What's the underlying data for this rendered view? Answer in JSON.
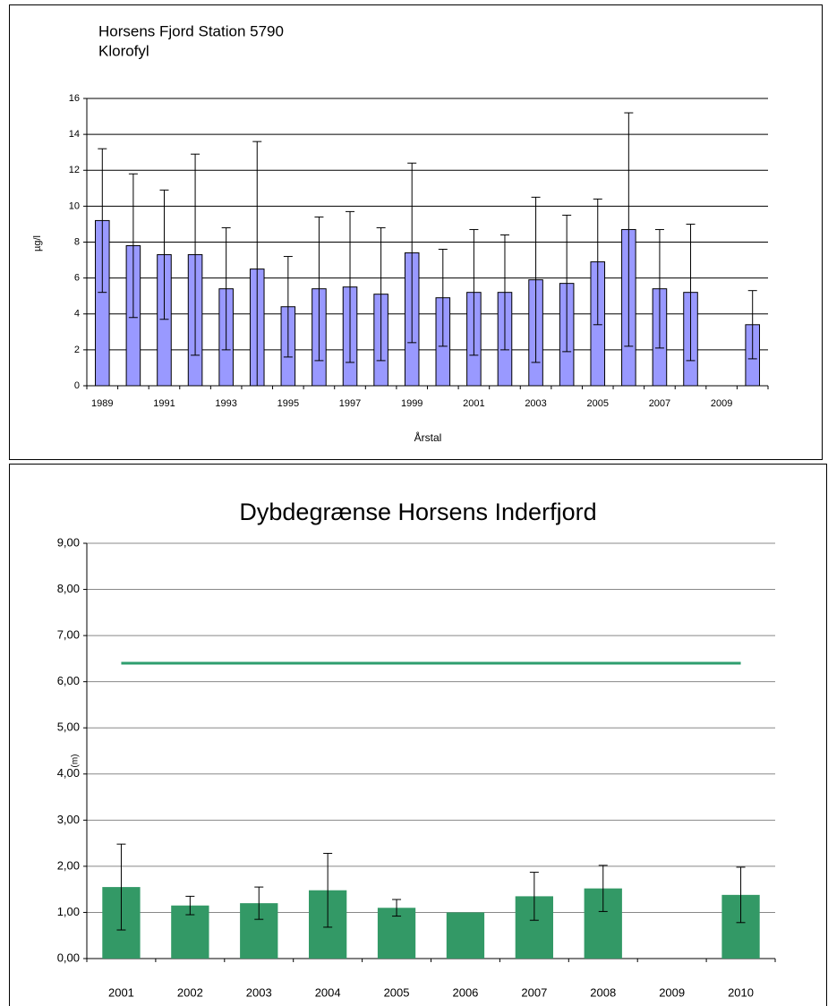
{
  "chart_data": [
    {
      "type": "bar",
      "title": "Horsens Fjord Station 5790",
      "subtitle": "Klorofyl",
      "x_label": "Årstal",
      "y_label": "µg/l",
      "categories": [
        "1989",
        null,
        "1991",
        null,
        "1993",
        null,
        "1995",
        null,
        "1997",
        null,
        "1999",
        null,
        "2001",
        null,
        "2003",
        null,
        "2005",
        null,
        "2007",
        null,
        "2009",
        null
      ],
      "series": [
        {
          "color": "#9999ff",
          "values": [
            9.2,
            7.8,
            7.3,
            7.3,
            5.4,
            6.5,
            4.4,
            5.4,
            5.5,
            5.1,
            7.4,
            4.9,
            5.2,
            5.2,
            5.9,
            5.7,
            6.9,
            8.7,
            5.4,
            5.2,
            null,
            3.4
          ],
          "errors": [
            4.0,
            4.0,
            3.6,
            5.6,
            3.4,
            7.1,
            2.8,
            4.0,
            4.2,
            3.7,
            5.0,
            2.7,
            3.5,
            3.2,
            4.6,
            3.8,
            3.5,
            6.5,
            3.3,
            3.8,
            null,
            1.9
          ]
        }
      ],
      "ylim": [
        0,
        16
      ],
      "yticks": [
        0,
        2,
        4,
        6,
        8,
        10,
        12,
        14,
        16
      ],
      "grid": true
    },
    {
      "type": "bar",
      "title": "Dybdegrænse Horsens Inderfjord",
      "y_label": "(m)",
      "categories": [
        "2001",
        "2002",
        "2003",
        "2004",
        "2005",
        "2006",
        "2007",
        "2008",
        "2009",
        "2010"
      ],
      "series": [
        {
          "color": "#339966",
          "values": [
            1.55,
            1.15,
            1.2,
            1.48,
            1.1,
            1.0,
            1.35,
            1.52,
            null,
            1.38
          ],
          "errors": [
            0.93,
            0.2,
            0.35,
            0.8,
            0.18,
            null,
            0.52,
            0.5,
            null,
            0.6
          ]
        },
        {
          "type": "line",
          "color": "#2e9e6e",
          "values": [
            6.4,
            6.4,
            6.4,
            6.4,
            6.4,
            6.4,
            6.4,
            6.4,
            6.4,
            6.4
          ]
        }
      ],
      "ylim": [
        0,
        9
      ],
      "yticks": [
        {
          "value": 0,
          "label": "0,00"
        },
        {
          "value": 1,
          "label": "1,00"
        },
        {
          "value": 2,
          "label": "2,00"
        },
        {
          "value": 3,
          "label": "3,00"
        },
        {
          "value": 4,
          "label": "4,00"
        },
        {
          "value": 5,
          "label": "5,00"
        },
        {
          "value": 6,
          "label": "6,00"
        },
        {
          "value": 7,
          "label": "7,00"
        },
        {
          "value": 8,
          "label": "8,00"
        },
        {
          "value": 9,
          "label": "9,00"
        }
      ],
      "grid": true
    }
  ]
}
